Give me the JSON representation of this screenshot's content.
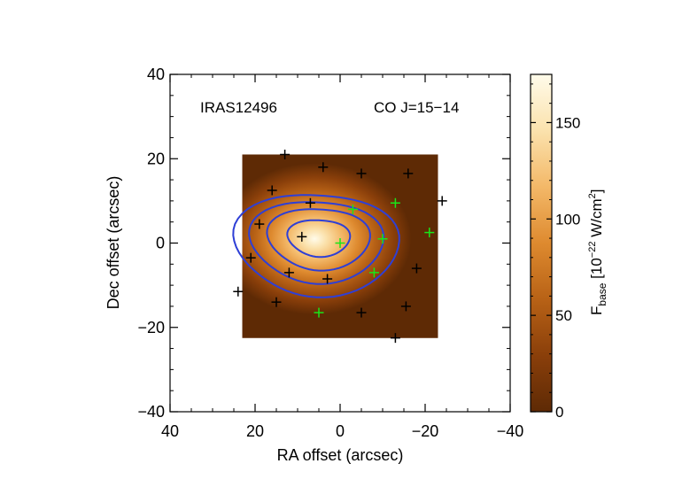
{
  "chart_data": {
    "type": "heatmap",
    "source_label": "IRAS12496",
    "line_label": "CO J=15−14",
    "xlabel": "RA offset (arcsec)",
    "ylabel": "Dec offset (arcsec)",
    "xlim": [
      40,
      -40
    ],
    "ylim": [
      -40,
      40
    ],
    "x_ticks": [
      40,
      20,
      0,
      -20,
      -40
    ],
    "y_ticks": [
      40,
      20,
      0,
      -20,
      -40
    ],
    "x_tick_labels": [
      "40",
      "20",
      "0",
      "−20",
      "−40"
    ],
    "y_tick_labels": [
      "40",
      "20",
      "0",
      "−20",
      "−40"
    ],
    "map_extent": {
      "ra": [
        23,
        -23
      ],
      "dec": [
        -22.5,
        21
      ]
    },
    "peak": {
      "ra": 6,
      "dec": 1
    },
    "colorbar": {
      "label_main": "F",
      "label_sub": "base",
      "label_unit": " [10",
      "label_exp": "−22",
      "label_unit2": " W/cm",
      "label_exp2": "2",
      "label_close": "]",
      "range": [
        0,
        175
      ],
      "ticks": [
        0,
        50,
        100,
        150
      ],
      "tick_labels": [
        "0",
        "50",
        "100",
        "150"
      ]
    },
    "contour_levels": [
      40,
      70,
      100,
      135
    ],
    "contour_color": "#2e3fd6",
    "colormap": [
      "#5e2a05",
      "#8a3f0a",
      "#b86216",
      "#de8a2f",
      "#f3b868",
      "#fbe2ad",
      "#fffbea"
    ],
    "black_markers": [
      {
        "ra": 13,
        "dec": 21
      },
      {
        "ra": 4,
        "dec": 18
      },
      {
        "ra": -5,
        "dec": 16.5
      },
      {
        "ra": -16,
        "dec": 16.5
      },
      {
        "ra": 16,
        "dec": 12.5
      },
      {
        "ra": 7,
        "dec": 9.5
      },
      {
        "ra": -24,
        "dec": 10
      },
      {
        "ra": 19,
        "dec": 4.5
      },
      {
        "ra": 9,
        "dec": 1.5
      },
      {
        "ra": 21,
        "dec": -3.5
      },
      {
        "ra": 12,
        "dec": -7
      },
      {
        "ra": -18,
        "dec": -6
      },
      {
        "ra": 24,
        "dec": -11.5
      },
      {
        "ra": 3,
        "dec": -8.5
      },
      {
        "ra": 15,
        "dec": -14
      },
      {
        "ra": -5,
        "dec": -16.5
      },
      {
        "ra": -15.5,
        "dec": -15
      },
      {
        "ra": -13,
        "dec": -22.5
      }
    ],
    "green_markers": [
      {
        "ra": -3,
        "dec": 8
      },
      {
        "ra": -13,
        "dec": 9.5
      },
      {
        "ra": 0,
        "dec": 0
      },
      {
        "ra": -10,
        "dec": 1
      },
      {
        "ra": -21,
        "dec": 2.5
      },
      {
        "ra": -8,
        "dec": -7
      },
      {
        "ra": 5,
        "dec": -16.5
      }
    ]
  }
}
